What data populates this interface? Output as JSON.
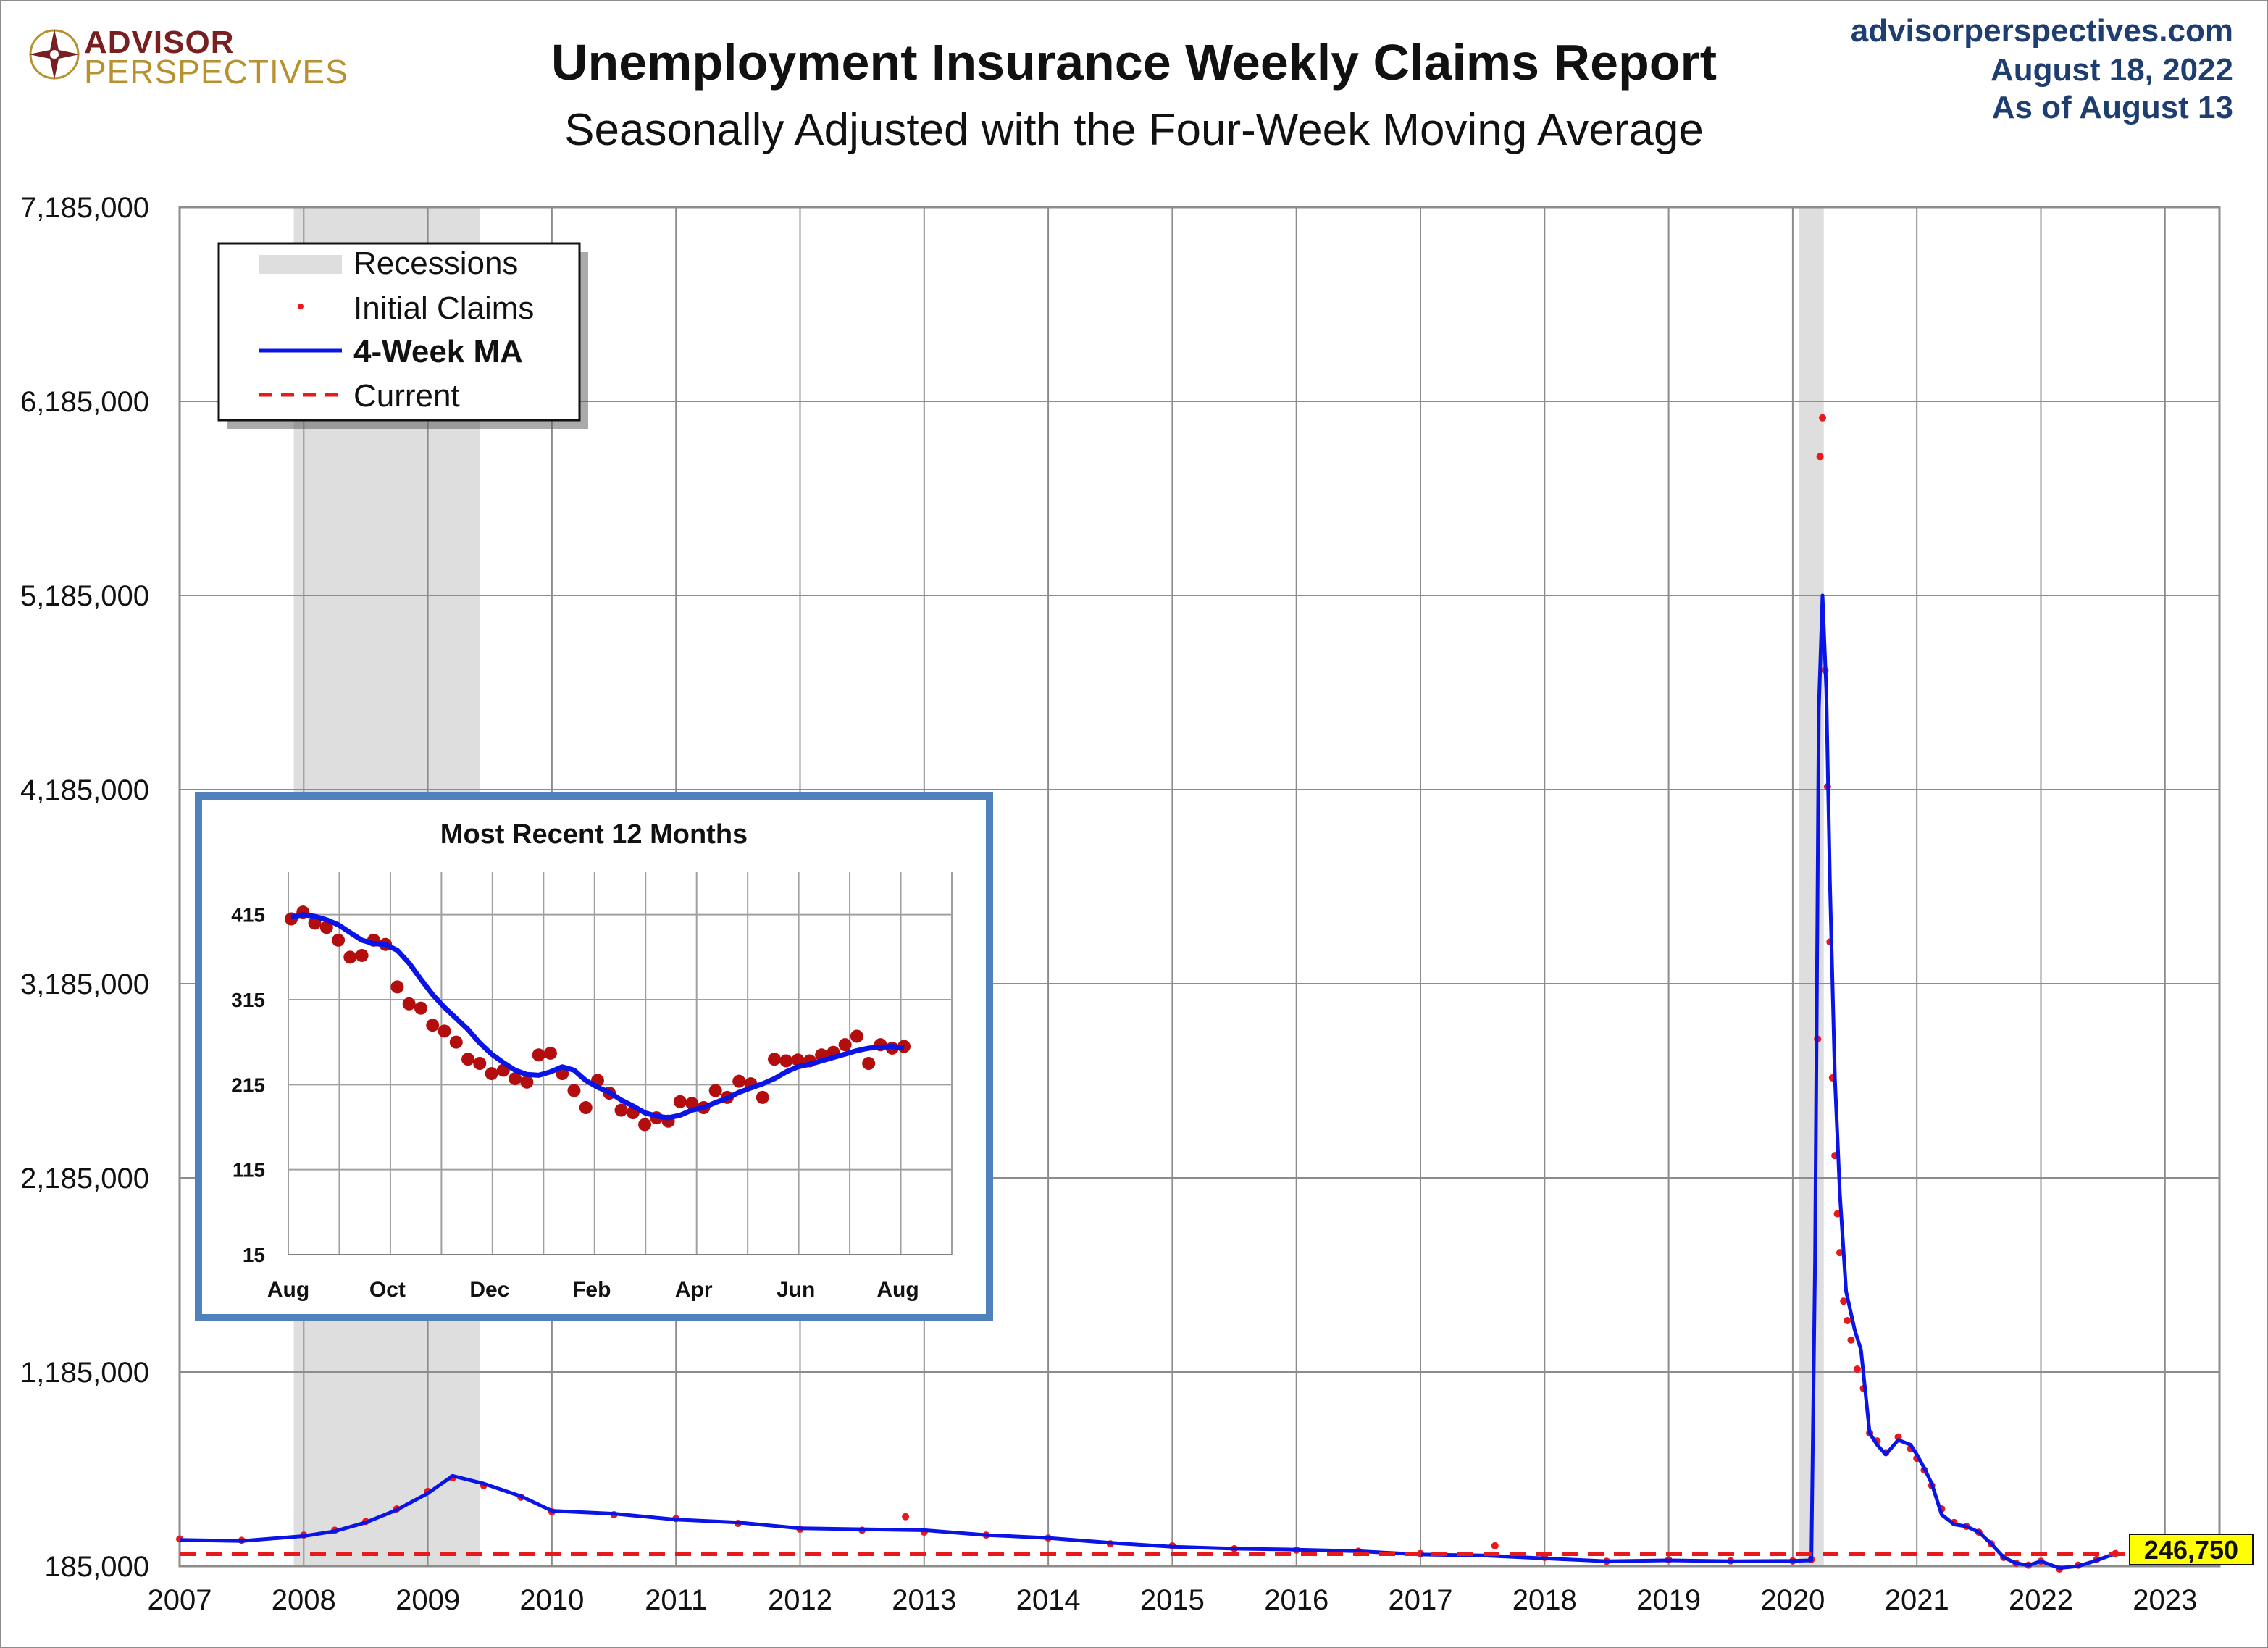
{
  "header": {
    "logo_line1": "ADVISOR",
    "logo_line2": "PERSPECTIVES",
    "title": "Unemployment Insurance Weekly Claims Report",
    "subtitle": "Seasonally Adjusted with the Four-Week Moving Average",
    "site": "advisorperspectives.com",
    "date": "August 18, 2022",
    "as_of": "As of August 13"
  },
  "colors": {
    "points": "#e8191b",
    "ma": "#0a14e6",
    "current": "#e8191b",
    "recession": "#dedede",
    "inset_border": "#4f81bd",
    "inset_points": "#b40d0d",
    "current_badge": "#ffff00"
  },
  "chart_data": [
    {
      "type": "line",
      "title": "Unemployment Insurance Weekly Claims Report",
      "subtitle": "Seasonally Adjusted with the Four-Week Moving Average",
      "x_ticks": [
        "2007",
        "2008",
        "2009",
        "2010",
        "2011",
        "2012",
        "2013",
        "2014",
        "2015",
        "2016",
        "2017",
        "2018",
        "2019",
        "2020",
        "2021",
        "2022",
        "2023"
      ],
      "xlim": [
        2007.0,
        2023.45
      ],
      "y_ticks": [
        "7,185,000",
        "6,185,000",
        "5,185,000",
        "4,185,000",
        "3,185,000",
        "2,185,000",
        "1,185,000",
        "185,000"
      ],
      "ylim": [
        185000,
        7185000
      ],
      "grid": true,
      "legend": {
        "position": "top-left",
        "entries": [
          "Recessions",
          "Initial Claims",
          "4-Week MA",
          "Current"
        ]
      },
      "recessions": [
        [
          2007.92,
          2009.42
        ],
        [
          2020.05,
          2020.25
        ]
      ],
      "current": {
        "value": 246750,
        "label": "246,750"
      },
      "series": [
        {
          "name": "4-Week MA",
          "x": [
            2007.0,
            2007.5,
            2008.0,
            2008.25,
            2008.5,
            2008.75,
            2009.0,
            2009.2,
            2009.45,
            2009.75,
            2010.0,
            2010.5,
            2011.0,
            2011.5,
            2012.0,
            2012.5,
            2013.0,
            2013.5,
            2014.0,
            2014.5,
            2015.0,
            2015.5,
            2016.0,
            2016.5,
            2017.0,
            2017.5,
            2018.0,
            2018.5,
            2019.0,
            2019.5,
            2020.0,
            2020.15,
            2020.18,
            2020.21,
            2020.24,
            2020.27,
            2020.3,
            2020.34,
            2020.38,
            2020.43,
            2020.5,
            2020.55,
            2020.62,
            2020.68,
            2020.75,
            2020.85,
            2020.95,
            2021.0,
            2021.06,
            2021.12,
            2021.2,
            2021.3,
            2021.4,
            2021.5,
            2021.6,
            2021.7,
            2021.8,
            2021.9,
            2022.0,
            2022.15,
            2022.3,
            2022.45,
            2022.6
          ],
          "y": [
            320000,
            315000,
            340000,
            365000,
            410000,
            475000,
            560000,
            650000,
            610000,
            545000,
            470000,
            455000,
            425000,
            410000,
            380000,
            375000,
            370000,
            345000,
            330000,
            305000,
            285000,
            275000,
            270000,
            262000,
            245000,
            240000,
            225000,
            210000,
            215000,
            210000,
            212000,
            215000,
            1750000,
            4600000,
            5185000,
            4700000,
            3700000,
            2700000,
            2100000,
            1600000,
            1400000,
            1300000,
            870000,
            810000,
            760000,
            835000,
            810000,
            760000,
            690000,
            610000,
            450000,
            400000,
            390000,
            360000,
            300000,
            230000,
            200000,
            190000,
            210000,
            175000,
            185000,
            215000,
            250000
          ]
        },
        {
          "name": "Initial Claims",
          "x": [
            2007.0,
            2007.5,
            2008.0,
            2008.25,
            2008.5,
            2008.75,
            2009.0,
            2009.2,
            2009.45,
            2009.75,
            2010.0,
            2010.5,
            2011.0,
            2011.5,
            2012.0,
            2012.5,
            2012.85,
            2013.0,
            2013.5,
            2014.0,
            2014.5,
            2015.0,
            2015.5,
            2016.0,
            2016.5,
            2017.0,
            2017.6,
            2018.0,
            2018.5,
            2019.0,
            2019.5,
            2020.0,
            2020.15,
            2020.2,
            2020.22,
            2020.24,
            2020.26,
            2020.28,
            2020.3,
            2020.32,
            2020.34,
            2020.36,
            2020.38,
            2020.41,
            2020.44,
            2020.47,
            2020.52,
            2020.57,
            2020.62,
            2020.68,
            2020.75,
            2020.85,
            2020.95,
            2021.0,
            2021.06,
            2021.12,
            2021.2,
            2021.3,
            2021.4,
            2021.5,
            2021.6,
            2021.7,
            2021.8,
            2021.9,
            2022.0,
            2022.15,
            2022.3,
            2022.45,
            2022.6
          ],
          "y": [
            325000,
            318000,
            345000,
            370000,
            415000,
            480000,
            570000,
            640000,
            600000,
            540000,
            465000,
            450000,
            430000,
            405000,
            375000,
            370000,
            440000,
            360000,
            345000,
            330000,
            300000,
            290000,
            275000,
            268000,
            262000,
            250000,
            290000,
            230000,
            210000,
            218000,
            212000,
            212000,
            220000,
            2900000,
            5900000,
            6100000,
            4800000,
            4200000,
            3400000,
            2700000,
            2300000,
            2000000,
            1800000,
            1550000,
            1450000,
            1350000,
            1200000,
            1100000,
            870000,
            830000,
            770000,
            850000,
            790000,
            740000,
            680000,
            600000,
            480000,
            410000,
            390000,
            360000,
            300000,
            230000,
            200000,
            190000,
            210000,
            170000,
            190000,
            220000,
            250000
          ]
        }
      ]
    },
    {
      "type": "line",
      "title": "Most Recent 12 Months",
      "x_ticks": [
        "Aug",
        "Oct",
        "Dec",
        "Feb",
        "Apr",
        "Jun",
        "Aug"
      ],
      "y_ticks": [
        "415",
        "315",
        "215",
        "115",
        "15"
      ],
      "ylim": [
        15,
        465
      ],
      "grid": true,
      "series": [
        {
          "name": "Initial Claims",
          "values": [
            410,
            418,
            405,
            400,
            385,
            365,
            367,
            385,
            380,
            330,
            310,
            305,
            285,
            278,
            265,
            245,
            240,
            228,
            232,
            222,
            218,
            250,
            252,
            228,
            208,
            188,
            220,
            205,
            185,
            182,
            168,
            176,
            172,
            195,
            193,
            188,
            208,
            200,
            219,
            216,
            200,
            245,
            243,
            244,
            243,
            250,
            253,
            262,
            272,
            240,
            262,
            258,
            260
          ]
        },
        {
          "name": "4-Week MA",
          "values": [
            412,
            415,
            413,
            409,
            403,
            394,
            385,
            381,
            380,
            373,
            358,
            339,
            321,
            306,
            293,
            280,
            264,
            251,
            241,
            232,
            227,
            226,
            230,
            236,
            232,
            220,
            212,
            206,
            197,
            190,
            182,
            178,
            176,
            179,
            185,
            188,
            194,
            199,
            206,
            211,
            216,
            222,
            230,
            236,
            239,
            243,
            247,
            251,
            255,
            258,
            259,
            260,
            258
          ]
        }
      ]
    }
  ]
}
